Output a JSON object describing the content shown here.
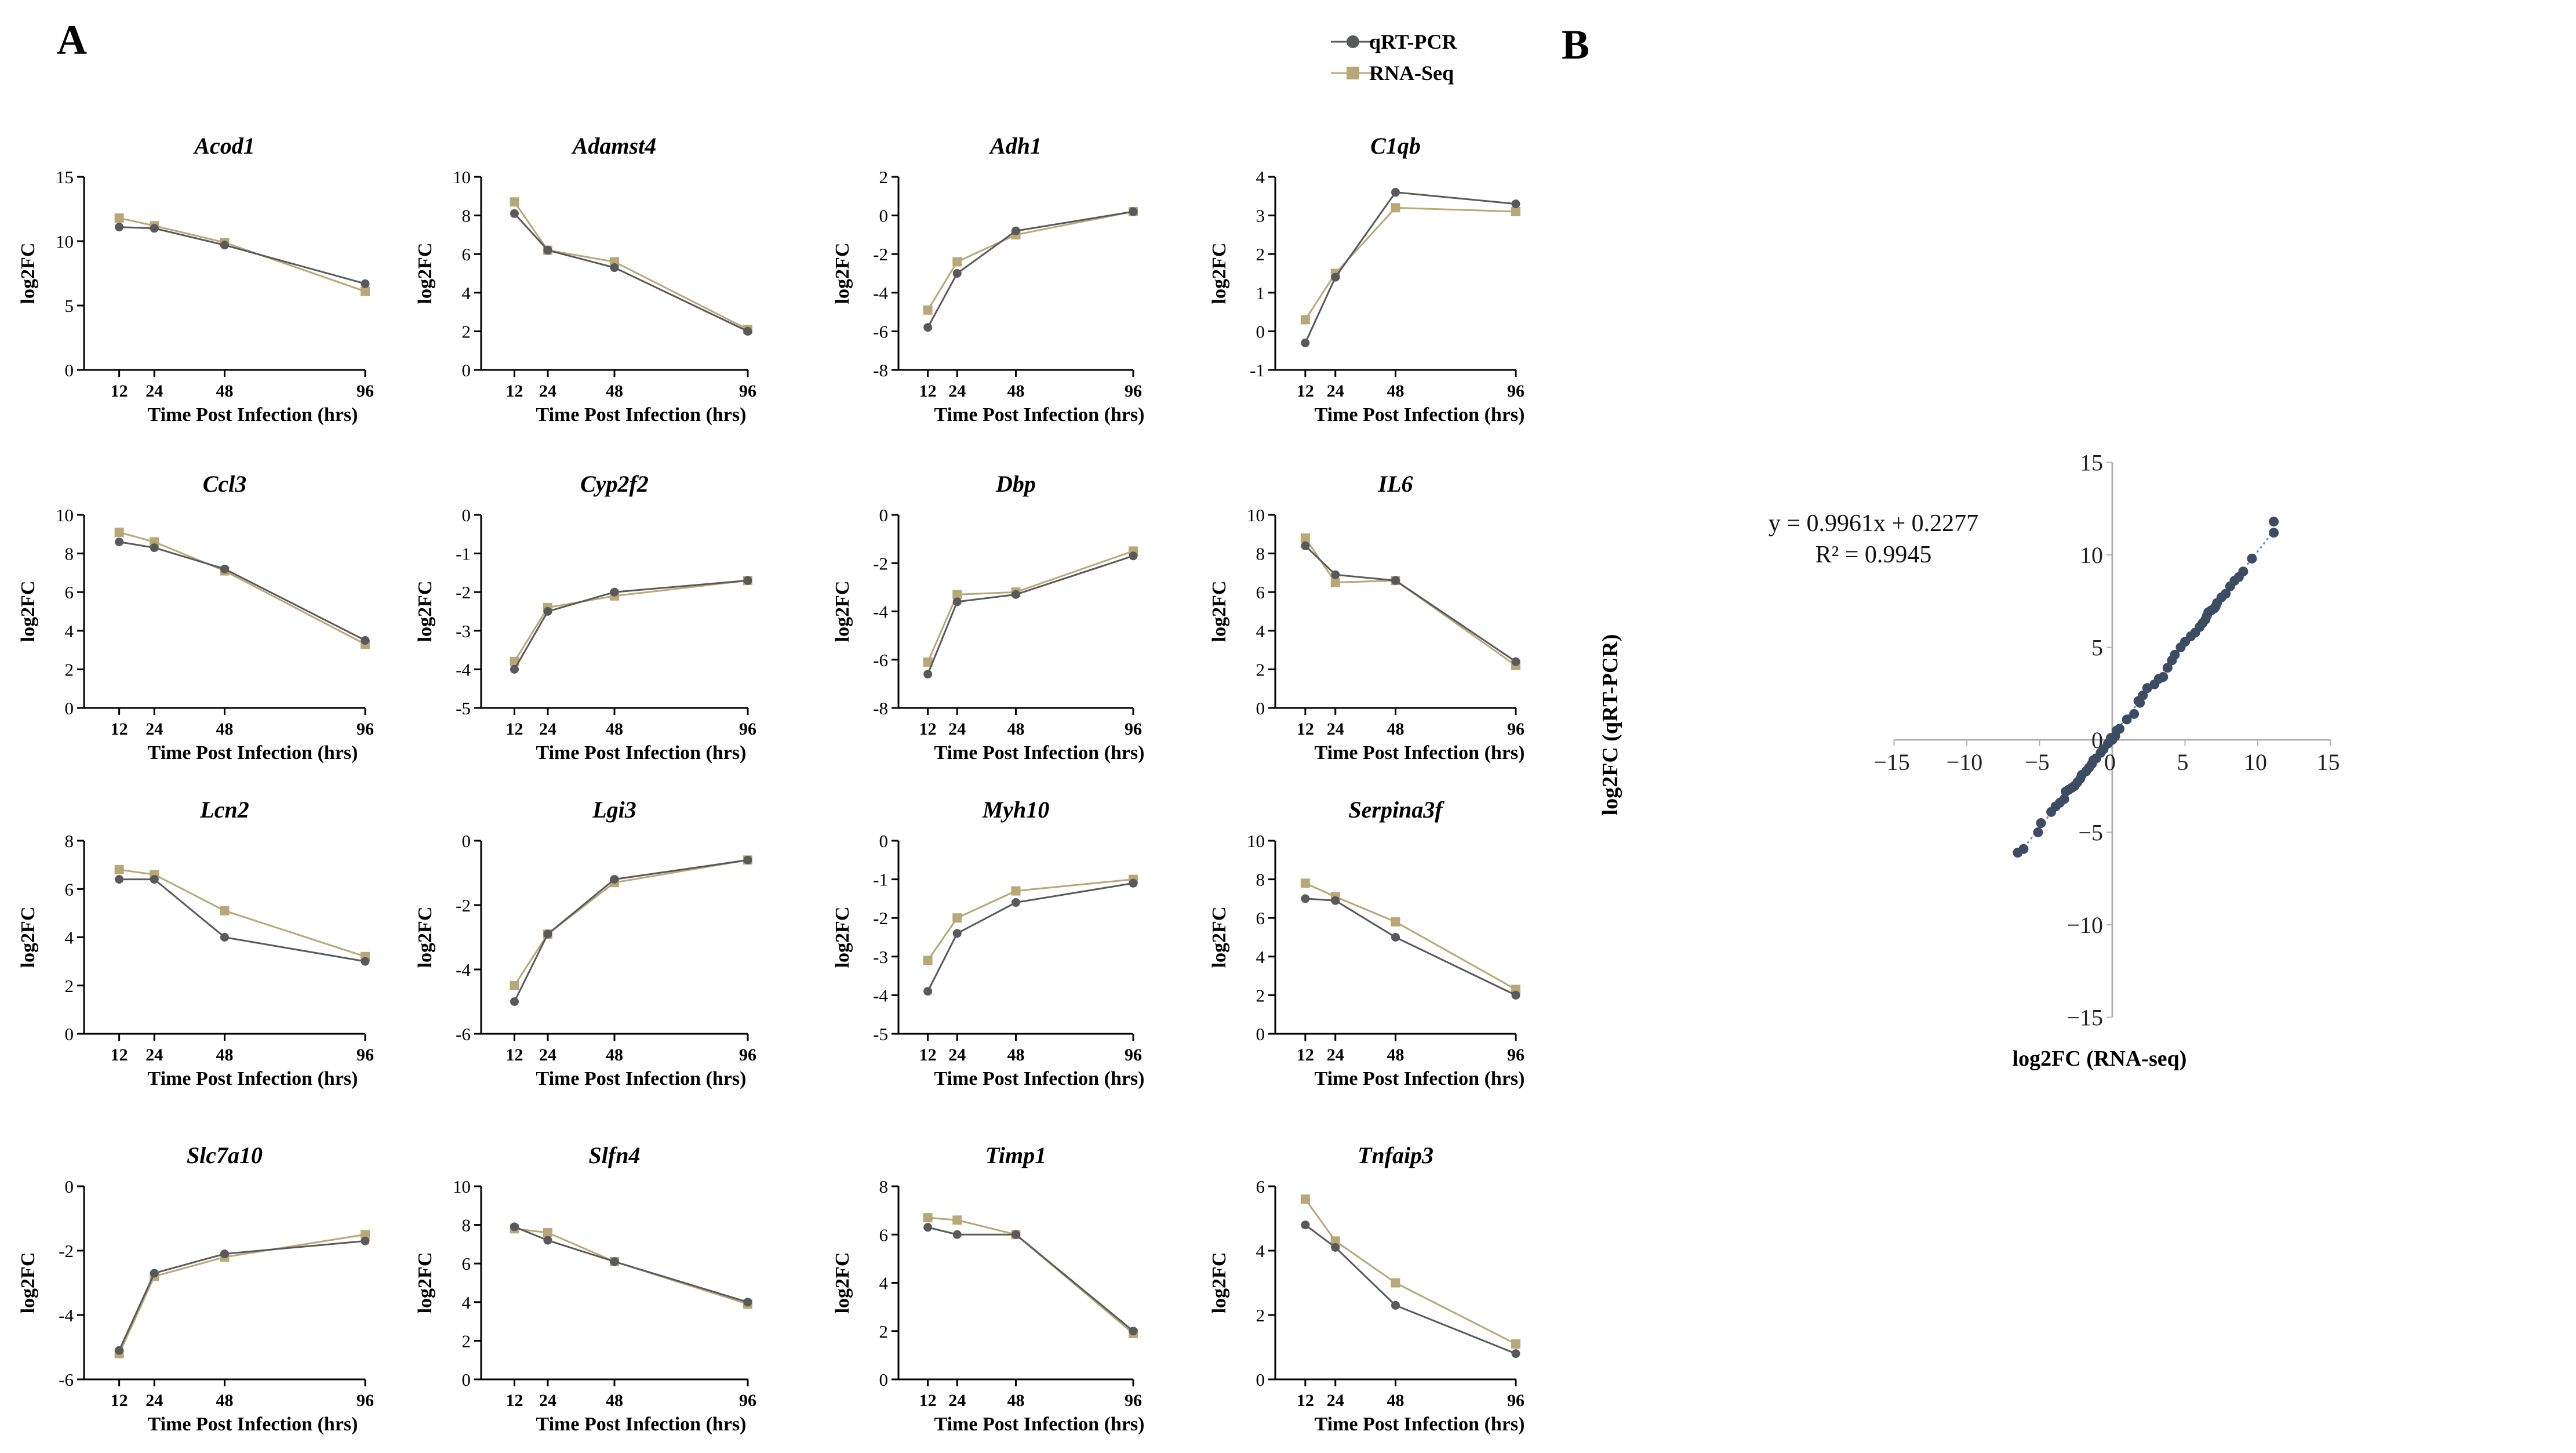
{
  "panels": {
    "a": "A",
    "b": "B"
  },
  "legend": {
    "qrt": "qRT-PCR",
    "rna": "RNA-Seq"
  },
  "colors": {
    "qrt": "#58595b",
    "rna": "#b8a877",
    "axis": "#000000",
    "fit": "#6e8fb0",
    "point": "#3b4c63",
    "frame": "#b0b0b0"
  },
  "chart_data": [
    {
      "type": "line",
      "panel": "A",
      "x": [
        12,
        24,
        48,
        96
      ],
      "xticks": [
        12,
        24,
        48,
        96
      ],
      "xlabel": "Time Post Infection (hrs)",
      "ylabel": "log2FC",
      "series_names": [
        "qRT-PCR",
        "RNA-Seq"
      ],
      "charts": [
        {
          "title": "Acod1",
          "ylim": [
            0,
            15
          ],
          "yticks": [
            0,
            5,
            10,
            15
          ],
          "qrt": [
            11.1,
            11.0,
            9.7,
            6.7
          ],
          "rna": [
            11.8,
            11.2,
            9.9,
            6.1
          ]
        },
        {
          "title": "Adamst4",
          "ylim": [
            0,
            10
          ],
          "yticks": [
            0,
            2,
            4,
            6,
            8,
            10
          ],
          "qrt": [
            8.1,
            6.2,
            5.3,
            2.0
          ],
          "rna": [
            8.7,
            6.2,
            5.6,
            2.1
          ]
        },
        {
          "title": "Adh1",
          "ylim": [
            -8,
            2
          ],
          "yticks": [
            -8,
            -6,
            -4,
            -2,
            0,
            2
          ],
          "qrt": [
            -5.8,
            -3.0,
            -0.8,
            0.2
          ],
          "rna": [
            -4.9,
            -2.4,
            -1.0,
            0.2
          ]
        },
        {
          "title": "C1qb",
          "ylim": [
            -1,
            4
          ],
          "yticks": [
            -1,
            0,
            1,
            2,
            3,
            4
          ],
          "qrt": [
            -0.3,
            1.4,
            3.6,
            3.3
          ],
          "rna": [
            0.3,
            1.5,
            3.2,
            3.1
          ]
        },
        {
          "title": "Ccl3",
          "ylim": [
            0,
            10
          ],
          "yticks": [
            0,
            2,
            4,
            6,
            8,
            10
          ],
          "qrt": [
            8.6,
            8.3,
            7.2,
            3.5
          ],
          "rna": [
            9.1,
            8.6,
            7.1,
            3.3
          ]
        },
        {
          "title": "Cyp2f2",
          "ylim": [
            -5,
            0
          ],
          "yticks": [
            -5,
            -4,
            -3,
            -2,
            -1,
            0
          ],
          "qrt": [
            -4.0,
            -2.5,
            -2.0,
            -1.7
          ],
          "rna": [
            -3.8,
            -2.4,
            -2.1,
            -1.7
          ]
        },
        {
          "title": "Dbp",
          "ylim": [
            -8,
            0
          ],
          "yticks": [
            -8,
            -6,
            -4,
            -2,
            0
          ],
          "qrt": [
            -6.6,
            -3.6,
            -3.3,
            -1.7
          ],
          "rna": [
            -6.1,
            -3.3,
            -3.2,
            -1.5
          ]
        },
        {
          "title": "IL6",
          "ylim": [
            0,
            10
          ],
          "yticks": [
            0,
            2,
            4,
            6,
            8,
            10
          ],
          "qrt": [
            8.4,
            6.9,
            6.6,
            2.4
          ],
          "rna": [
            8.8,
            6.5,
            6.6,
            2.2
          ]
        },
        {
          "title": "Lcn2",
          "ylim": [
            0,
            8
          ],
          "yticks": [
            0,
            2,
            4,
            6,
            8
          ],
          "qrt": [
            6.4,
            6.4,
            4.0,
            3.0
          ],
          "rna": [
            6.8,
            6.6,
            5.1,
            3.2
          ]
        },
        {
          "title": "Lgi3",
          "ylim": [
            -6,
            0
          ],
          "yticks": [
            -6,
            -4,
            -2,
            0
          ],
          "qrt": [
            -5.0,
            -2.9,
            -1.2,
            -0.6
          ],
          "rna": [
            -4.5,
            -2.9,
            -1.3,
            -0.6
          ]
        },
        {
          "title": "Myh10",
          "ylim": [
            -5,
            0
          ],
          "yticks": [
            -5,
            -4,
            -3,
            -2,
            -1,
            0
          ],
          "qrt": [
            -3.9,
            -2.4,
            -1.6,
            -1.1
          ],
          "rna": [
            -3.1,
            -2.0,
            -1.3,
            -1.0
          ]
        },
        {
          "title": "Serpina3f",
          "ylim": [
            0,
            10
          ],
          "yticks": [
            0,
            2,
            4,
            6,
            8,
            10
          ],
          "qrt": [
            7.0,
            6.9,
            5.0,
            2.0
          ],
          "rna": [
            7.8,
            7.1,
            5.8,
            2.3
          ]
        },
        {
          "title": "Slc7a10",
          "ylim": [
            -6,
            0
          ],
          "yticks": [
            -6,
            -4,
            -2,
            0
          ],
          "qrt": [
            -5.1,
            -2.7,
            -2.1,
            -1.7
          ],
          "rna": [
            -5.2,
            -2.8,
            -2.2,
            -1.5
          ]
        },
        {
          "title": "Slfn4",
          "ylim": [
            0,
            10
          ],
          "yticks": [
            0,
            2,
            4,
            6,
            8,
            10
          ],
          "qrt": [
            7.9,
            7.2,
            6.1,
            4.0
          ],
          "rna": [
            7.8,
            7.6,
            6.1,
            3.9
          ]
        },
        {
          "title": "Timp1",
          "ylim": [
            0,
            8
          ],
          "yticks": [
            0,
            2,
            4,
            6,
            8
          ],
          "qrt": [
            6.3,
            6.0,
            6.0,
            2.0
          ],
          "rna": [
            6.7,
            6.6,
            6.0,
            1.9
          ]
        },
        {
          "title": "Tnfaip3",
          "ylim": [
            0,
            6
          ],
          "yticks": [
            0,
            2,
            4,
            6
          ],
          "qrt": [
            4.8,
            4.1,
            2.3,
            0.8
          ],
          "rna": [
            5.6,
            4.3,
            3.0,
            1.1
          ]
        }
      ]
    },
    {
      "type": "scatter",
      "panel": "B",
      "xlabel": "log2FC (RNA-seq)",
      "ylabel": "log2FC (qRT-PCR)",
      "xlim": [
        -15,
        15
      ],
      "ylim": [
        -15,
        15
      ],
      "xticks": [
        -15,
        -10,
        -5,
        0,
        5,
        10,
        15
      ],
      "yticks": [
        -15,
        -10,
        -5,
        0,
        5,
        10,
        15
      ],
      "equation": "y = 0.9961x + 0.2277",
      "r2": "R² = 0.9945",
      "fit": {
        "slope": 0.9961,
        "intercept": 0.2277
      },
      "points": [
        [
          -6.5,
          -6.1
        ],
        [
          -6.1,
          -5.9
        ],
        [
          -5.1,
          -5.0
        ],
        [
          -4.9,
          -4.5
        ],
        [
          -4.2,
          -3.9
        ],
        [
          -3.9,
          -3.6
        ],
        [
          -3.6,
          -3.4
        ],
        [
          -3.3,
          -3.2
        ],
        [
          -3.2,
          -2.8
        ],
        [
          -3.0,
          -2.7
        ],
        [
          -2.8,
          -2.6
        ],
        [
          -2.6,
          -2.5
        ],
        [
          -2.4,
          -2.3
        ],
        [
          -2.2,
          -2.1
        ],
        [
          -2.1,
          -1.9
        ],
        [
          -1.8,
          -1.7
        ],
        [
          -1.6,
          -1.5
        ],
        [
          -1.4,
          -1.3
        ],
        [
          -1.3,
          -1.1
        ],
        [
          -1.1,
          -1.0
        ],
        [
          -0.8,
          -0.7
        ],
        [
          -0.6,
          -0.5
        ],
        [
          -0.3,
          -0.2
        ],
        [
          -0.1,
          0.1
        ],
        [
          0.2,
          0.2
        ],
        [
          0.5,
          0.6
        ],
        [
          0.3,
          0.5
        ],
        [
          1.0,
          1.1
        ],
        [
          1.5,
          1.4
        ],
        [
          1.9,
          2.0
        ],
        [
          2.1,
          2.4
        ],
        [
          2.4,
          2.8
        ],
        [
          2.9,
          3.0
        ],
        [
          3.2,
          3.3
        ],
        [
          3.5,
          3.4
        ],
        [
          3.8,
          3.9
        ],
        [
          4.1,
          4.3
        ],
        [
          4.3,
          4.6
        ],
        [
          4.7,
          5.0
        ],
        [
          5.0,
          5.3
        ],
        [
          5.4,
          5.6
        ],
        [
          5.7,
          5.8
        ],
        [
          6.0,
          6.1
        ],
        [
          6.2,
          6.3
        ],
        [
          6.4,
          6.5
        ],
        [
          6.5,
          6.7
        ],
        [
          6.6,
          6.9
        ],
        [
          6.8,
          7.0
        ],
        [
          7.0,
          7.1
        ],
        [
          7.1,
          7.2
        ],
        [
          7.2,
          7.4
        ],
        [
          7.5,
          7.7
        ],
        [
          7.8,
          7.9
        ],
        [
          8.1,
          8.3
        ],
        [
          8.4,
          8.6
        ],
        [
          8.7,
          8.8
        ],
        [
          9.0,
          9.1
        ],
        [
          9.6,
          9.8
        ],
        [
          11.1,
          11.2
        ],
        [
          11.1,
          11.8
        ],
        [
          0.0,
          0.0
        ],
        [
          1.8,
          2.1
        ]
      ]
    }
  ]
}
